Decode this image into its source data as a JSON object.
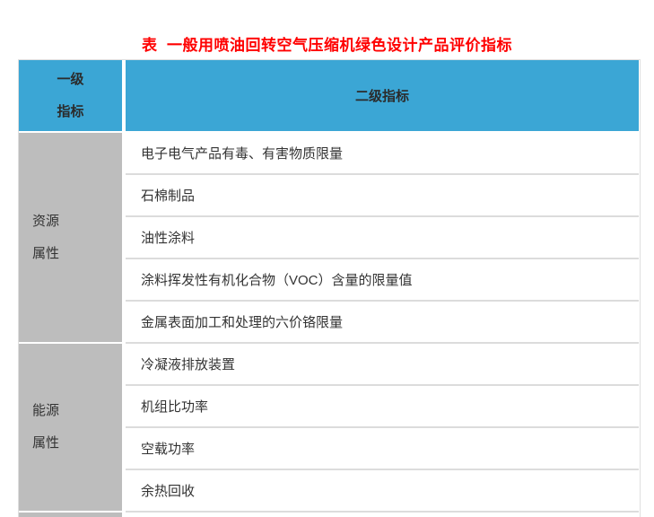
{
  "title": {
    "text": "表  一般用喷油回转空气压缩机绿色设计产品评价指标",
    "color": "#ff0000"
  },
  "table": {
    "header": {
      "col1": "一级\n指标",
      "col2": "二级指标"
    },
    "colors": {
      "header_bg": "#3ba6d5",
      "section_bg": "#bdbdbd",
      "row_divider": "#dcdcdc",
      "border": "#dfdfdf",
      "text": "#333333"
    },
    "sections": [
      {
        "label": "资源\n属性",
        "rows": [
          "电子电气产品有毒、有害物质限量",
          "石棉制品",
          "油性涂料",
          "涂料挥发性有机化合物（VOC）含量的限量值",
          "金属表面加工和处理的六价铬限量"
        ]
      },
      {
        "label": "能源\n属性",
        "rows": [
          "冷凝液排放装置",
          "机组比功率",
          "空载功率",
          "余热回收"
        ]
      },
      {
        "label": "",
        "rows": [
          ""
        ]
      }
    ]
  }
}
